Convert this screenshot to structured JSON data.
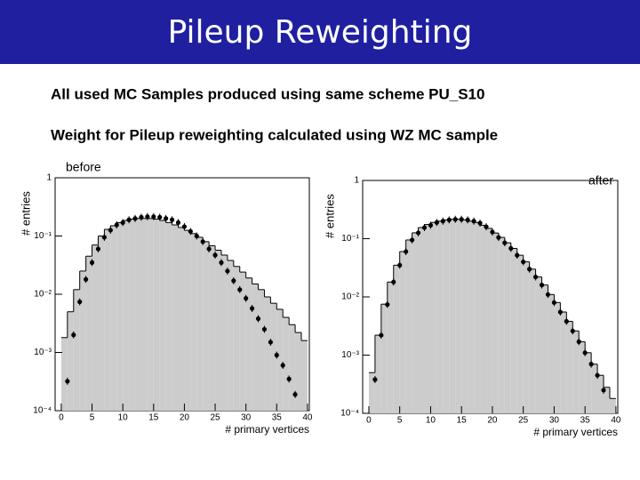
{
  "slide": {
    "title": "Pileup Reweighting",
    "bullets": [
      "All used MC Samples produced using same scheme PU_S10",
      "Weight for Pileup reweighting calculated using WZ MC sample"
    ]
  },
  "chart_data": [
    {
      "type": "histogram",
      "annotation": "before",
      "xlabel": "# primary vertices",
      "ylabel": "# entries",
      "log_y": true,
      "color": "#cccccc",
      "bins": [
        0,
        1,
        2,
        3,
        4,
        5,
        6,
        7,
        8,
        9,
        10,
        11,
        12,
        13,
        14,
        15,
        16,
        17,
        18,
        19,
        20,
        21,
        22,
        23,
        24,
        25,
        26,
        27,
        28,
        29,
        30,
        31,
        32,
        33,
        34,
        35,
        36,
        37,
        38,
        39,
        40
      ],
      "values": [
        0.0018,
        0.005,
        0.012,
        0.025,
        0.045,
        0.07,
        0.1,
        0.13,
        0.15,
        0.17,
        0.185,
        0.195,
        0.2,
        0.2,
        0.2,
        0.195,
        0.185,
        0.17,
        0.155,
        0.14,
        0.125,
        0.11,
        0.095,
        0.08,
        0.068,
        0.057,
        0.047,
        0.038,
        0.03,
        0.024,
        0.019,
        0.015,
        0.012,
        0.009,
        0.007,
        0.0055,
        0.004,
        0.003,
        0.0022,
        0.0016
      ],
      "points": {
        "color": "#000000",
        "x": [
          1,
          2,
          3,
          4,
          5,
          6,
          7,
          8,
          9,
          10,
          11,
          12,
          13,
          14,
          15,
          16,
          17,
          18,
          19,
          20,
          21,
          22,
          23,
          24,
          25,
          26,
          27,
          28,
          29,
          30,
          31,
          32,
          33,
          34,
          35,
          36,
          37,
          38
        ],
        "values": [
          0.00032,
          0.002,
          0.0074,
          0.018,
          0.035,
          0.06,
          0.095,
          0.126,
          0.155,
          0.17,
          0.19,
          0.2,
          0.21,
          0.215,
          0.215,
          0.21,
          0.2,
          0.19,
          0.17,
          0.145,
          0.12,
          0.1,
          0.08,
          0.06,
          0.047,
          0.035,
          0.025,
          0.017,
          0.012,
          0.0085,
          0.0057,
          0.0038,
          0.0025,
          0.0015,
          0.0009,
          0.0006,
          0.00035,
          0.00019
        ]
      },
      "xlim": [
        -1,
        40.3
      ],
      "ylim": [
        0.0001,
        1
      ],
      "xticks": [
        0,
        5,
        10,
        15,
        20,
        25,
        30,
        35,
        40
      ],
      "yticks": [
        {
          "value": 0.0001,
          "label": "10⁻⁴"
        },
        {
          "value": 0.001,
          "label": "10⁻³"
        },
        {
          "value": 0.01,
          "label": "10⁻²"
        },
        {
          "value": 0.1,
          "label": "10⁻¹"
        },
        1
      ]
    },
    {
      "type": "histogram",
      "annotation": "after",
      "xlabel": "# primary vertices",
      "ylabel": "# entries",
      "log_y": true,
      "color": "#cccccc",
      "bins": [
        0,
        1,
        2,
        3,
        4,
        5,
        6,
        7,
        8,
        9,
        10,
        11,
        12,
        13,
        14,
        15,
        16,
        17,
        18,
        19,
        20,
        21,
        22,
        23,
        24,
        25,
        26,
        27,
        28,
        29,
        30,
        31,
        32,
        33,
        34,
        35,
        36,
        37,
        38,
        39,
        40
      ],
      "values": [
        0.0005,
        0.0022,
        0.0075,
        0.018,
        0.035,
        0.06,
        0.095,
        0.126,
        0.155,
        0.175,
        0.19,
        0.2,
        0.21,
        0.215,
        0.215,
        0.21,
        0.2,
        0.19,
        0.17,
        0.15,
        0.125,
        0.105,
        0.085,
        0.068,
        0.052,
        0.04,
        0.03,
        0.022,
        0.016,
        0.011,
        0.008,
        0.0055,
        0.0038,
        0.0026,
        0.0017,
        0.0011,
        0.0007,
        0.00045,
        0.00028,
        0.00018
      ],
      "points": {
        "color": "#000000",
        "x": [
          1,
          2,
          3,
          4,
          5,
          6,
          7,
          8,
          9,
          10,
          11,
          12,
          13,
          14,
          15,
          16,
          17,
          18,
          19,
          20,
          21,
          22,
          23,
          24,
          25,
          26,
          27,
          28,
          29,
          30,
          31,
          32,
          33,
          34,
          35,
          36,
          37,
          38
        ],
        "values": [
          0.00038,
          0.0022,
          0.0074,
          0.018,
          0.035,
          0.06,
          0.095,
          0.126,
          0.155,
          0.17,
          0.19,
          0.2,
          0.21,
          0.215,
          0.215,
          0.21,
          0.2,
          0.185,
          0.16,
          0.13,
          0.105,
          0.085,
          0.068,
          0.052,
          0.04,
          0.03,
          0.022,
          0.016,
          0.011,
          0.008,
          0.0055,
          0.0038,
          0.0026,
          0.0017,
          0.0011,
          0.0007,
          0.00045,
          0.00025
        ]
      },
      "xlim": [
        -1,
        40.3
      ],
      "ylim": [
        0.0001,
        1
      ],
      "xticks": [
        0,
        5,
        10,
        15,
        20,
        25,
        30,
        35,
        40
      ],
      "yticks": [
        {
          "value": 0.0001,
          "label": "10⁻⁴"
        },
        {
          "value": 0.001,
          "label": "10⁻³"
        },
        {
          "value": 0.01,
          "label": "10⁻²"
        },
        {
          "value": 0.1,
          "label": "10⁻¹"
        },
        1
      ]
    }
  ]
}
